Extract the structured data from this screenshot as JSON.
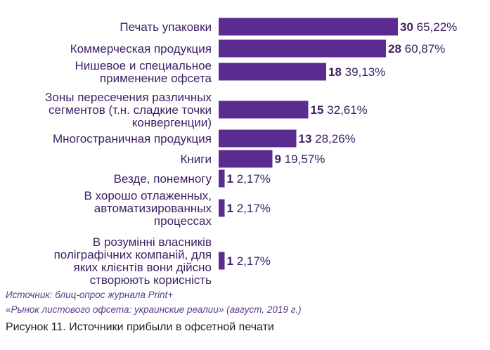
{
  "chart_data": {
    "type": "bar",
    "orientation": "horizontal",
    "categories": [
      [
        "Печать упаковки"
      ],
      [
        "Коммерческая продукция"
      ],
      [
        "Нишевое и специальное",
        "применение офсета"
      ],
      [
        "Зоны пересечения различных",
        "сегментов (т.н. сладкие точки",
        "конвергенции)"
      ],
      [
        "Многостраничная продукция"
      ],
      [
        "Книги"
      ],
      [
        "Везде, понемногу"
      ],
      [
        "В хорошо отлаженных,",
        "автоматизированных",
        "процессах"
      ],
      [
        "В розумінні власників",
        "поліграфічних компаній, для",
        "яких клієнтів вони дійсно",
        "створюють корисність"
      ]
    ],
    "values": [
      30,
      28,
      18,
      15,
      13,
      9,
      1,
      1,
      1
    ],
    "percent_labels": [
      "65,22%",
      "60,87%",
      "39,13%",
      "32,61%",
      "28,26%",
      "19,57%",
      "2,17%",
      "2,17%",
      "2,17%"
    ],
    "bar_color": "#5b2c8f",
    "text_color": "#3b1f63"
  },
  "source": {
    "line1": "Источник: блиц-опрос журнала Print+",
    "line2": "«Рынок листового офсета: украинские реалии» (август, 2019 г.)"
  },
  "caption": "Рисунок 11. Источники прибыли в офсетной печати"
}
